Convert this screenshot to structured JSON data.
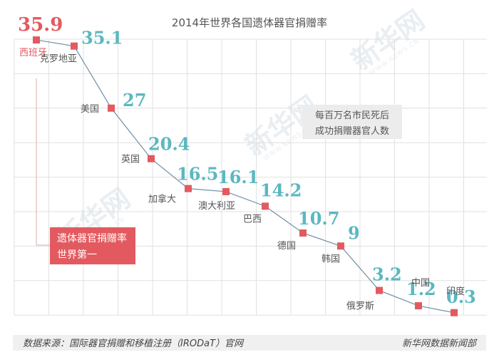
{
  "chart_data": {
    "type": "line",
    "title": "2014年世界各国遗体器官捐赠率",
    "categories": [
      "西班牙",
      "克罗地亚",
      "美国",
      "英国",
      "加拿大",
      "澳大利亚",
      "巴西",
      "德国",
      "韩国",
      "俄罗斯",
      "中国",
      "印度"
    ],
    "values": [
      35.9,
      35.1,
      27,
      20.4,
      16.5,
      16.1,
      14.2,
      10.7,
      9,
      3.2,
      1.2,
      0.3
    ],
    "value_labels": [
      "35.9",
      "35.1",
      "27",
      "20.4",
      "16.5",
      "16.1",
      "14.2",
      "10.7",
      "9",
      "3.2",
      "1.2",
      "0.3"
    ],
    "ylim": [
      0,
      36
    ],
    "grid": true,
    "series_label": [
      "每百万名市民死后",
      "成功捐赠器官人数"
    ],
    "highlight": [
      "遗体器官捐赠率",
      "世界第一"
    ]
  },
  "footer": {
    "source": "数据来源：国际器官捐赠和移植注册（IRODaT）官网",
    "credit": "新华网数据新闻部"
  },
  "watermark": {
    "text": "新华网",
    "sub": "WWW.NEWS.CN"
  },
  "colors": {
    "marker": "#e25a5f",
    "line": "#6e8fa3",
    "value": "#5bb8c0",
    "grid": "#e0e0e0",
    "badge": "#e25a5f",
    "legend_bg": "#ececec",
    "footer_bg": "#f0f0f0"
  }
}
